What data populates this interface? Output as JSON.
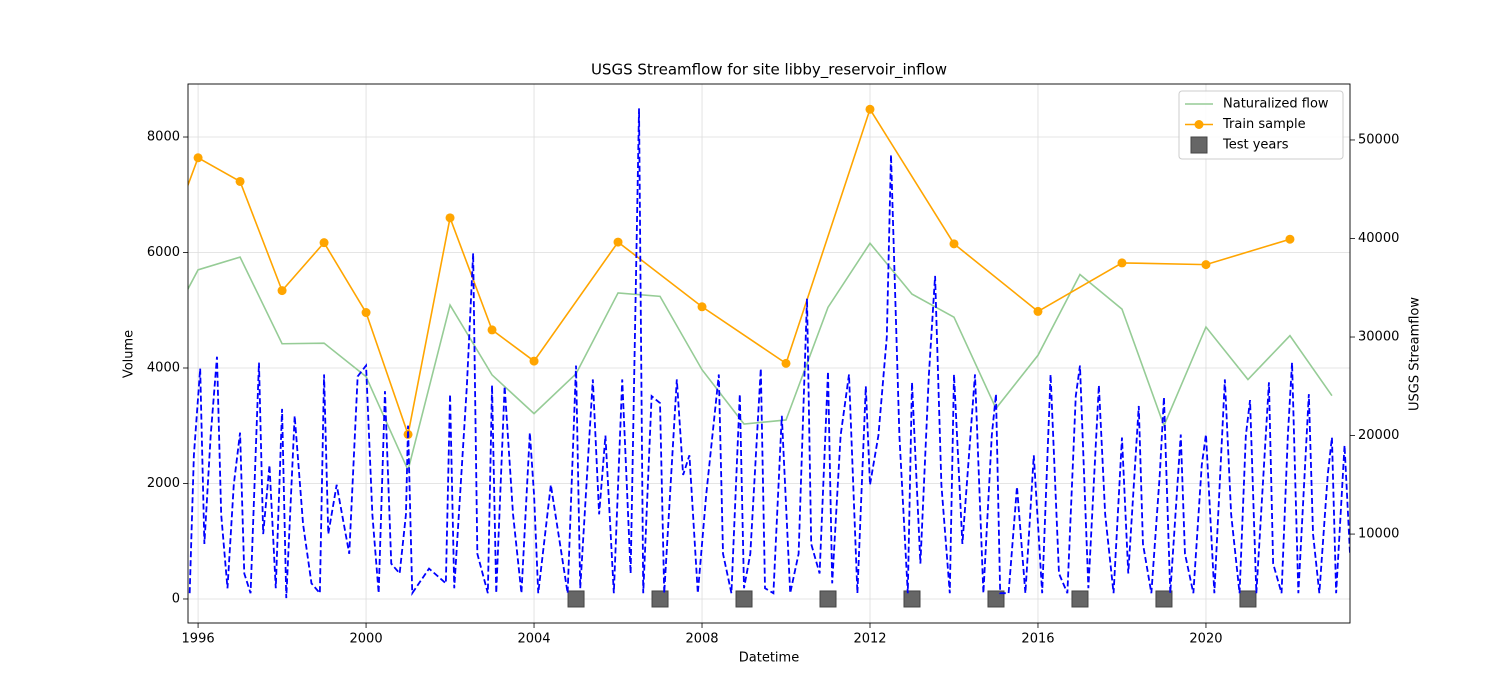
{
  "chart_data": {
    "type": "line",
    "title": "USGS Streamflow for site libby_reservoir_inflow",
    "x_label": "Datetime",
    "y_label": "Volume",
    "y2_label": "USGS Streamflow",
    "xlim": [
      1995.76,
      2023.43
    ],
    "xticks": [
      1996,
      2000,
      2004,
      2008,
      2012,
      2016,
      2020
    ],
    "ylim": [
      -416,
      8918
    ],
    "yticks": [
      0,
      2000,
      4000,
      6000,
      8000
    ],
    "y2lim": [
      974,
      55680
    ],
    "y2ticks": [
      10000,
      20000,
      30000,
      40000,
      50000
    ],
    "grid": true,
    "legend": "upper right",
    "series": [
      {
        "name": "Naturalized flow",
        "color": "#96cc96",
        "linestyle": "solid",
        "marker": "none",
        "x": [
          1995,
          1996,
          1997,
          1998,
          1999,
          2000,
          2001,
          2002,
          2003,
          2004,
          2005,
          2006,
          2007,
          2008,
          2009,
          2010,
          2011,
          2012,
          2013,
          2014,
          2015,
          2016,
          2017,
          2018,
          2019,
          2020,
          2021,
          2022,
          2023
        ],
        "values": [
          4325,
          5700,
          5920,
          4420,
          4430,
          3850,
          2230,
          5090,
          3880,
          3210,
          3900,
          5300,
          5240,
          3970,
          3030,
          3100,
          5050,
          6160,
          5280,
          4880,
          3300,
          4220,
          5620,
          5020,
          3000,
          4710,
          3800,
          4560,
          3520
        ]
      },
      {
        "name": "Train sample",
        "color": "orange",
        "linestyle": "solid",
        "marker": "circle",
        "x": [
          1995,
          1996,
          1997,
          1998,
          1999,
          2000,
          2001,
          2002,
          2003,
          2004,
          2006,
          2008,
          2010,
          2012,
          2014,
          2016,
          2018,
          2020,
          2022
        ],
        "values": [
          5680,
          7640,
          7230,
          5340,
          6170,
          4960,
          2850,
          6600,
          4660,
          4120,
          6180,
          5060,
          4080,
          8480,
          6150,
          4980,
          5820,
          5790,
          6230
        ]
      },
      {
        "name": "Test years",
        "color": "#666666",
        "linestyle": "none",
        "marker": "square",
        "x": [
          2005,
          2007,
          2009,
          2011,
          2013,
          2015,
          2017,
          2019,
          2021
        ],
        "values": [
          0,
          0,
          0,
          0,
          0,
          0,
          0,
          0,
          0
        ]
      },
      {
        "color": "blue",
        "linestyle": "dashed",
        "marker": "none",
        "axis": "y2",
        "x": [
          1995.8,
          1995.9,
          1996.05,
          1996.15,
          1996.3,
          1996.45,
          1996.55,
          1996.7,
          1996.85,
          1997.0,
          1997.1,
          1997.25,
          1997.45,
          1997.55,
          1997.7,
          1997.85,
          1998.0,
          1998.1,
          1998.3,
          1998.5,
          1998.7,
          1998.9,
          1999.0,
          1999.1,
          1999.3,
          1999.6,
          1999.8,
          2000.0,
          2000.15,
          2000.3,
          2000.45,
          2000.6,
          2000.8,
          2000.95,
          2001.0,
          2001.1,
          2001.5,
          2001.9,
          2002.0,
          2002.1,
          2002.4,
          2002.55,
          2002.65,
          2002.9,
          2003.0,
          2003.1,
          2003.3,
          2003.5,
          2003.7,
          2003.9,
          2004.0,
          2004.1,
          2004.4,
          2004.8,
          2005.0,
          2005.1,
          2005.4,
          2005.55,
          2005.7,
          2005.9,
          2006.1,
          2006.3,
          2006.5,
          2006.6,
          2006.8,
          2007.0,
          2007.1,
          2007.4,
          2007.55,
          2007.7,
          2007.9,
          2008.1,
          2008.4,
          2008.5,
          2008.7,
          2008.9,
          2009.0,
          2009.15,
          2009.4,
          2009.5,
          2009.7,
          2009.9,
          2010.1,
          2010.3,
          2010.5,
          2010.6,
          2010.8,
          2011.0,
          2011.1,
          2011.3,
          2011.5,
          2011.7,
          2011.9,
          2012.0,
          2012.2,
          2012.4,
          2012.5,
          2012.7,
          2012.9,
          2013.0,
          2013.2,
          2013.4,
          2013.55,
          2013.7,
          2013.9,
          2014.0,
          2014.2,
          2014.5,
          2014.7,
          2014.9,
          2015.0,
          2015.1,
          2015.3,
          2015.5,
          2015.7,
          2015.9,
          2016.1,
          2016.3,
          2016.5,
          2016.7,
          2016.9,
          2017.0,
          2017.2,
          2017.45,
          2017.6,
          2017.8,
          2018.0,
          2018.15,
          2018.4,
          2018.5,
          2018.7,
          2018.9,
          2019.0,
          2019.15,
          2019.4,
          2019.5,
          2019.7,
          2019.9,
          2020.0,
          2020.2,
          2020.45,
          2020.6,
          2020.8,
          2020.95,
          2021.05,
          2021.2,
          2021.5,
          2021.6,
          2021.8,
          2021.95,
          2022.05,
          2022.2,
          2022.45,
          2022.55,
          2022.7,
          2022.9,
          2023.0,
          2023.1,
          2023.3,
          2023.43
        ],
        "values": [
          4000,
          18000,
          26800,
          9000,
          20000,
          28000,
          12000,
          4500,
          15000,
          20300,
          6000,
          4000,
          27400,
          10000,
          17000,
          4500,
          22700,
          3500,
          22000,
          11000,
          5000,
          4000,
          26200,
          10000,
          15000,
          8000,
          26000,
          27100,
          12000,
          4000,
          24500,
          7000,
          6000,
          12000,
          21000,
          4000,
          6500,
          5000,
          24200,
          4500,
          25000,
          38500,
          8000,
          4000,
          25100,
          4000,
          25000,
          12000,
          4000,
          20300,
          14000,
          4000,
          15000,
          4000,
          27100,
          4500,
          25700,
          12000,
          20000,
          4000,
          25700,
          6000,
          53200,
          4000,
          24000,
          23300,
          4000,
          25700,
          16000,
          18000,
          4000,
          14000,
          26200,
          8000,
          4000,
          24200,
          4500,
          8000,
          26800,
          4500,
          4000,
          22000,
          4000,
          8000,
          33900,
          9000,
          6000,
          26500,
          5000,
          20000,
          26200,
          4000,
          25000,
          15000,
          20000,
          30000,
          48500,
          20000,
          4000,
          25400,
          7000,
          26000,
          36200,
          15000,
          4000,
          26200,
          9000,
          26200,
          4000,
          20000,
          24200,
          4000,
          4000,
          14800,
          4000,
          18000,
          4000,
          26200,
          6000,
          4000,
          24000,
          27100,
          4500,
          25100,
          12000,
          4000,
          19800,
          6000,
          23000,
          9000,
          4000,
          16000,
          23900,
          4000,
          20100,
          8000,
          4000,
          17000,
          20100,
          4000,
          25700,
          12000,
          4000,
          20000,
          23600,
          4000,
          25400,
          7000,
          4000,
          20000,
          27400,
          4000,
          24200,
          10000,
          4000,
          16000,
          19800,
          4000,
          19000,
          8000
        ]
      }
    ]
  }
}
